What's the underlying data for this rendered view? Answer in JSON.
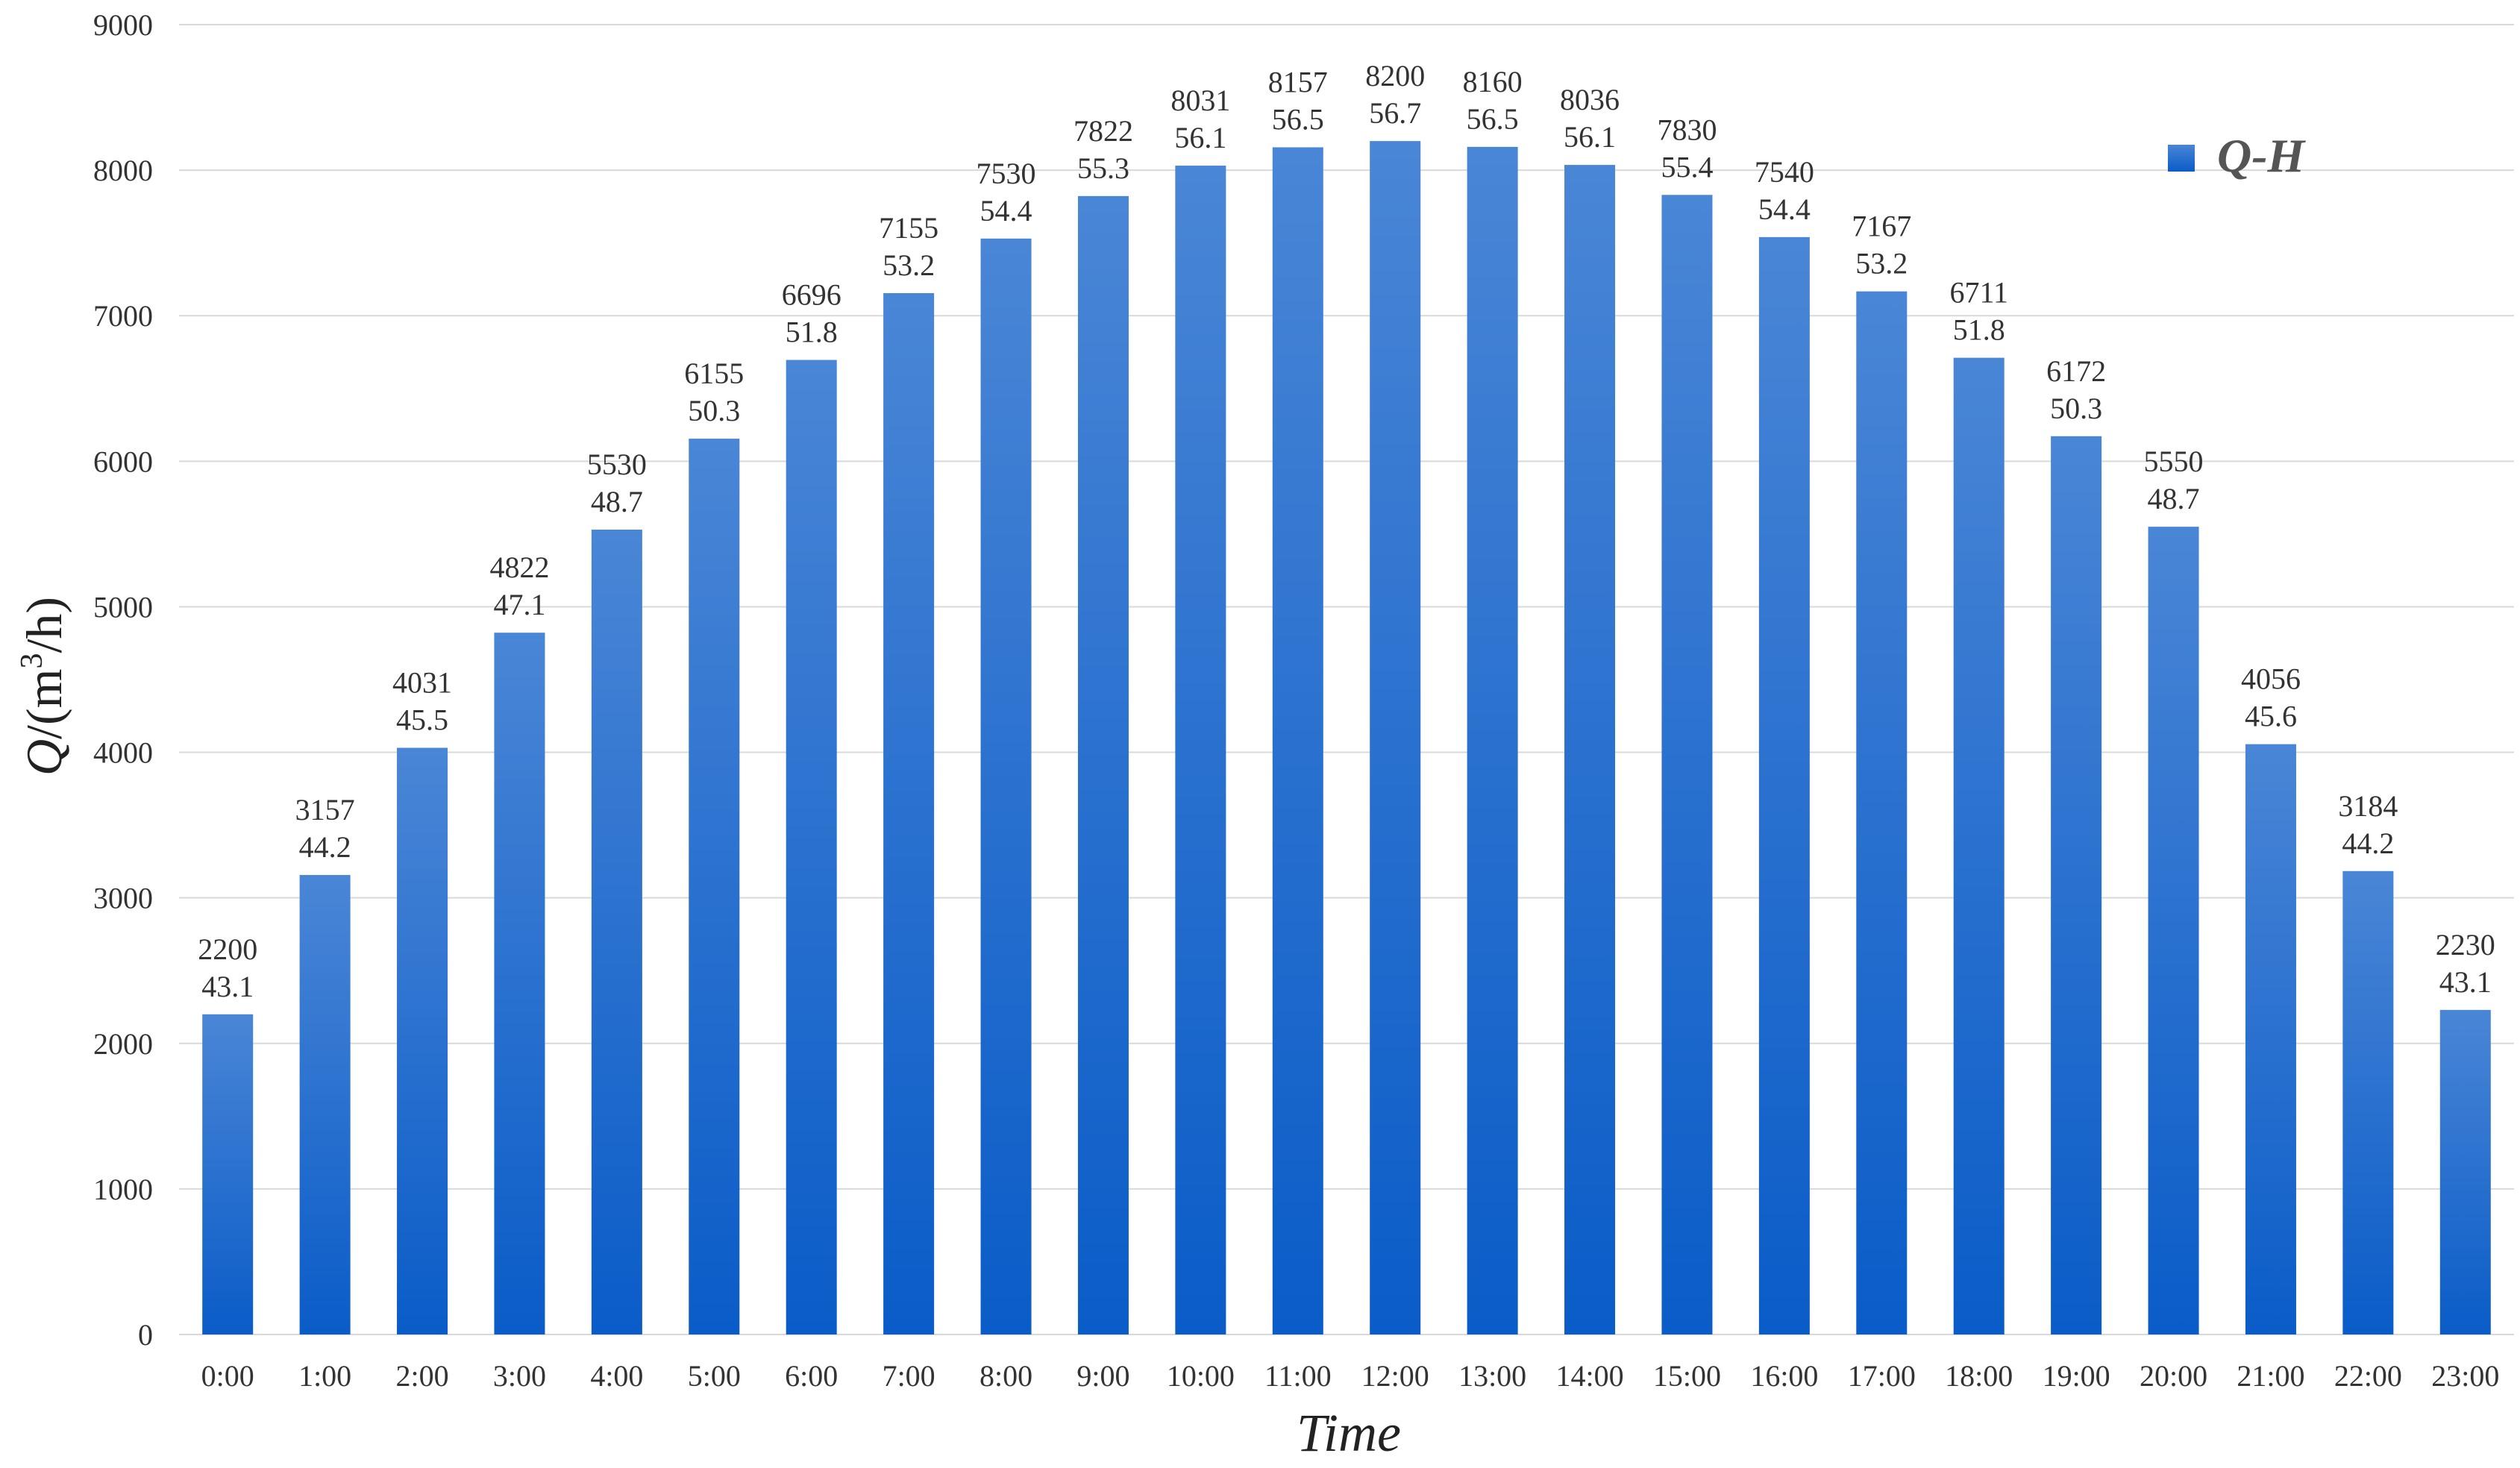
{
  "chart_data": {
    "type": "bar",
    "title": "",
    "xlabel": "Time",
    "ylabel_parts": {
      "q": "Q",
      "unit_before_sup": "/(m",
      "sup": "3",
      "unit_after_sup": "/h)"
    },
    "ylim": [
      0,
      9000
    ],
    "y_ticks": [
      0,
      1000,
      2000,
      3000,
      4000,
      5000,
      6000,
      7000,
      8000,
      9000
    ],
    "grid": true,
    "legend": {
      "placement": "top-right",
      "label": "Q-H"
    },
    "categories": [
      "0:00",
      "1:00",
      "2:00",
      "3:00",
      "4:00",
      "5:00",
      "6:00",
      "7:00",
      "8:00",
      "9:00",
      "10:00",
      "11:00",
      "12:00",
      "13:00",
      "14:00",
      "15:00",
      "16:00",
      "17:00",
      "18:00",
      "19:00",
      "20:00",
      "21:00",
      "22:00",
      "23:00"
    ],
    "series": [
      {
        "name": "Q-H",
        "values": [
          2200,
          3157,
          4031,
          4822,
          5530,
          6155,
          6696,
          7155,
          7530,
          7822,
          8031,
          8157,
          8200,
          8160,
          8036,
          7830,
          7540,
          7167,
          6711,
          6172,
          5550,
          4056,
          3184,
          2230
        ],
        "secondary_labels": [
          "43.1",
          "44.2",
          "45.5",
          "47.1",
          "48.7",
          "50.3",
          "51.8",
          "53.2",
          "54.4",
          "55.3",
          "56.1",
          "56.5",
          "56.7",
          "56.5",
          "56.1",
          "55.4",
          "54.4",
          "53.2",
          "51.8",
          "50.3",
          "48.7",
          "45.6",
          "44.2",
          "43.1"
        ]
      }
    ],
    "colors": {
      "bar_top": "#4a86d6",
      "bar_bottom": "#0a5cc8",
      "grid": "#d9d9d9",
      "text": "#333333"
    }
  }
}
